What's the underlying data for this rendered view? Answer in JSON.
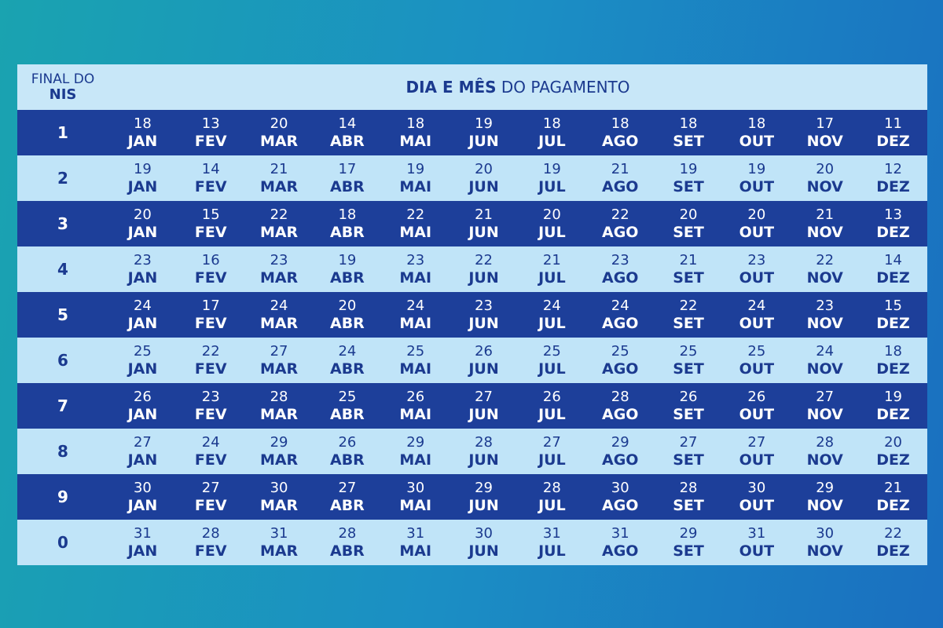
{
  "header": {
    "first_col": {
      "line1": "FINAL DO",
      "line2": "NIS"
    },
    "title": {
      "bold": "DIA E MÊS",
      "regular": "DO PAGAMENTO"
    }
  },
  "months": [
    "JAN",
    "FEV",
    "MAR",
    "ABR",
    "MAI",
    "JUN",
    "JUL",
    "AGO",
    "SET",
    "OUT",
    "NOV",
    "DEZ"
  ],
  "rows": [
    {
      "nis": "1",
      "days": [
        18,
        13,
        20,
        14,
        18,
        19,
        18,
        18,
        18,
        18,
        17,
        11
      ]
    },
    {
      "nis": "2",
      "days": [
        19,
        14,
        21,
        17,
        19,
        20,
        19,
        21,
        19,
        19,
        20,
        12
      ]
    },
    {
      "nis": "3",
      "days": [
        20,
        15,
        22,
        18,
        22,
        21,
        20,
        22,
        20,
        20,
        21,
        13
      ]
    },
    {
      "nis": "4",
      "days": [
        23,
        16,
        23,
        19,
        23,
        22,
        21,
        23,
        21,
        23,
        22,
        14
      ]
    },
    {
      "nis": "5",
      "days": [
        24,
        17,
        24,
        20,
        24,
        23,
        24,
        24,
        22,
        24,
        23,
        15
      ]
    },
    {
      "nis": "6",
      "days": [
        25,
        22,
        27,
        24,
        25,
        26,
        25,
        25,
        25,
        25,
        24,
        18
      ]
    },
    {
      "nis": "7",
      "days": [
        26,
        23,
        28,
        25,
        26,
        27,
        26,
        28,
        26,
        26,
        27,
        19
      ]
    },
    {
      "nis": "8",
      "days": [
        27,
        24,
        29,
        26,
        29,
        28,
        27,
        29,
        27,
        27,
        28,
        20
      ]
    },
    {
      "nis": "9",
      "days": [
        30,
        27,
        30,
        27,
        30,
        29,
        28,
        30,
        28,
        30,
        29,
        21
      ]
    },
    {
      "nis": "0",
      "days": [
        31,
        28,
        31,
        28,
        31,
        30,
        31,
        31,
        29,
        31,
        30,
        22
      ]
    }
  ]
}
